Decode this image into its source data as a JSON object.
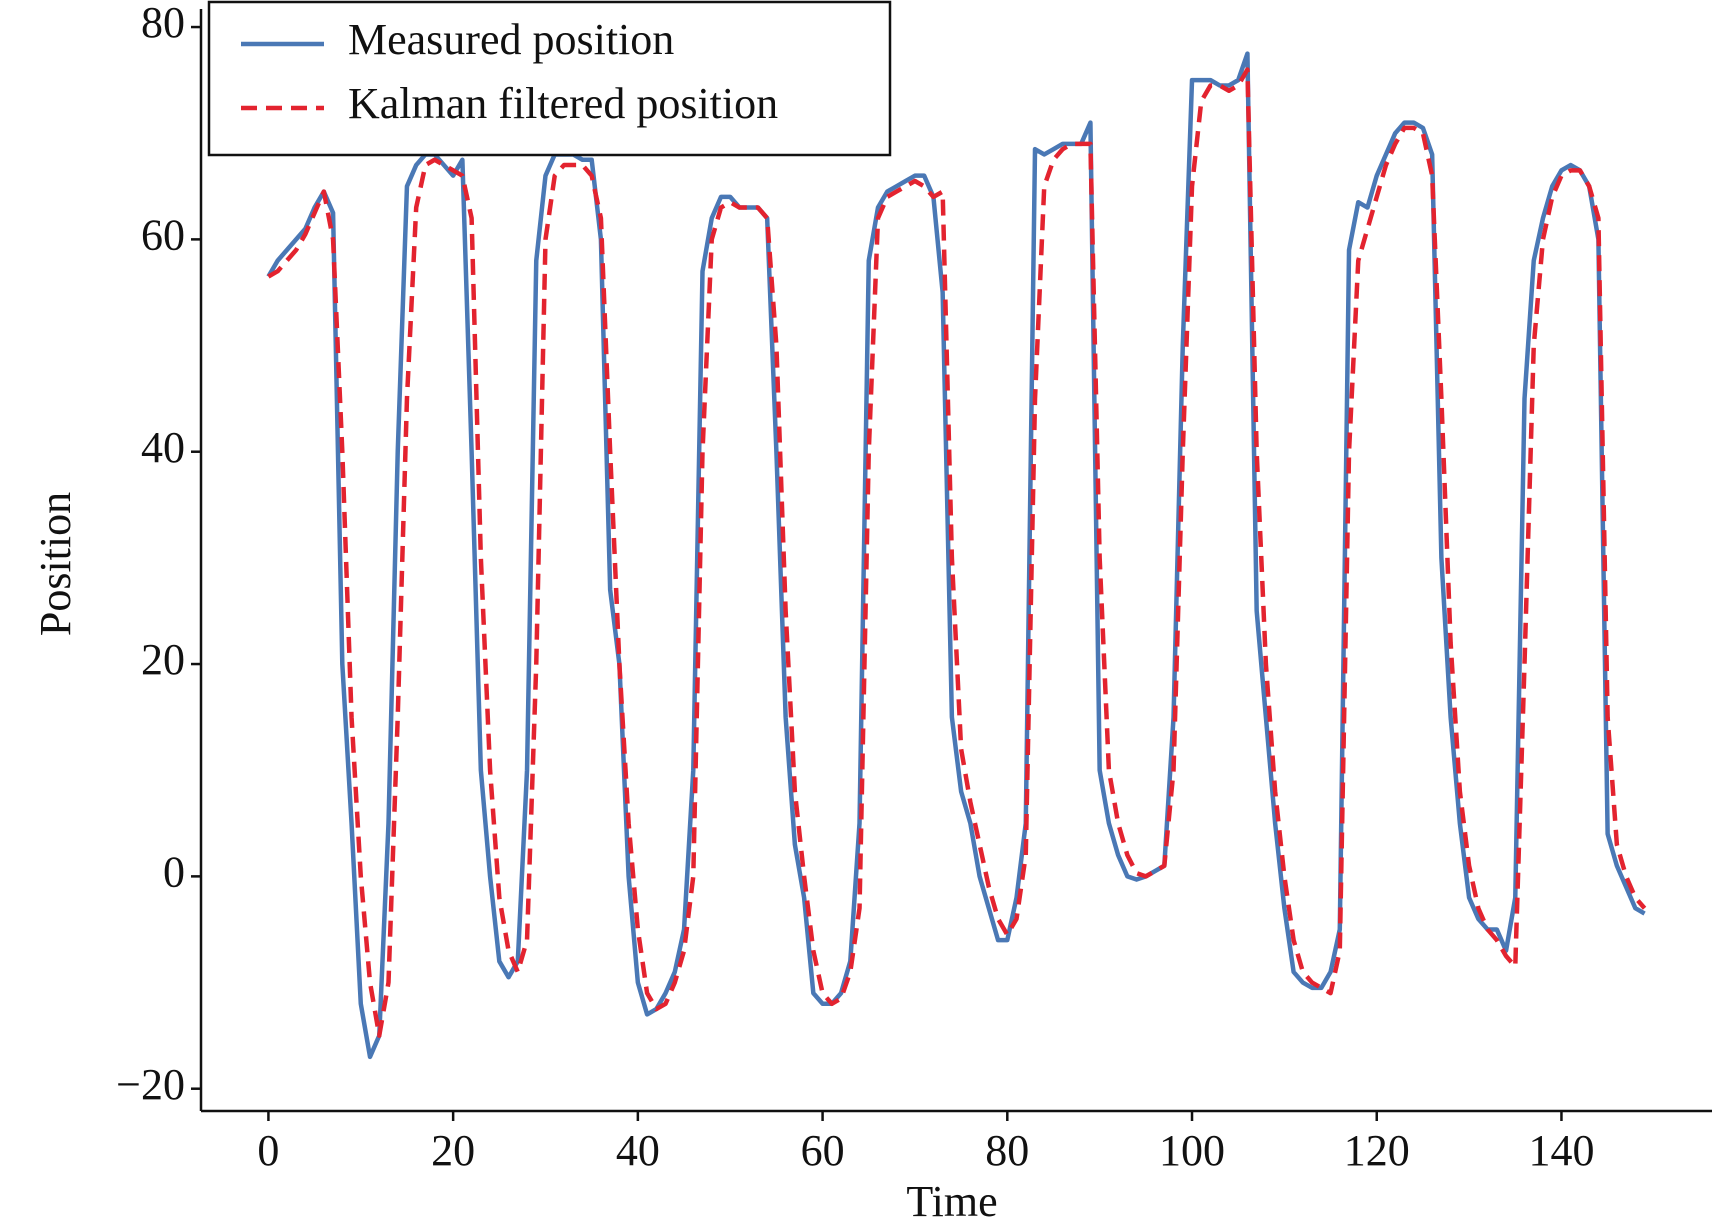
{
  "chart_data": {
    "type": "line",
    "x_label": "Time",
    "y_label": "Position",
    "x": [
      0,
      1,
      2,
      3,
      4,
      5,
      6,
      7,
      8,
      9,
      10,
      11,
      12,
      13,
      14,
      15,
      16,
      17,
      18,
      19,
      20,
      21,
      22,
      23,
      24,
      25,
      26,
      27,
      28,
      29,
      30,
      31,
      32,
      33,
      34,
      35,
      36,
      37,
      38,
      39,
      40,
      41,
      42,
      43,
      44,
      45,
      46,
      47,
      48,
      49,
      50,
      51,
      52,
      53,
      54,
      55,
      56,
      57,
      58,
      59,
      60,
      61,
      62,
      63,
      64,
      65,
      66,
      67,
      68,
      69,
      70,
      71,
      72,
      73,
      74,
      75,
      76,
      77,
      78,
      79,
      80,
      81,
      82,
      83,
      84,
      85,
      86,
      87,
      88,
      89,
      90,
      91,
      92,
      93,
      94,
      95,
      96,
      97,
      98,
      99,
      100,
      101,
      102,
      103,
      104,
      105,
      106,
      107,
      108,
      109,
      110,
      111,
      112,
      113,
      114,
      115,
      116,
      117,
      118,
      119,
      120,
      121,
      122,
      123,
      124,
      125,
      126,
      127,
      128,
      129,
      130,
      131,
      132,
      133,
      134,
      135,
      136,
      137,
      138,
      139,
      140,
      141,
      142,
      143,
      144,
      145,
      146,
      147,
      148,
      149
    ],
    "series": [
      {
        "name": "Measured position",
        "color": "#4a78b5",
        "dash": false,
        "values": [
          56.5,
          58,
          59,
          60,
          61,
          63,
          64.5,
          62.5,
          20,
          5,
          -12,
          -17,
          -15,
          5,
          40,
          65,
          67,
          68,
          68,
          67,
          66,
          67.5,
          40,
          10,
          0,
          -8,
          -9.5,
          -8,
          10,
          58,
          66,
          68,
          68,
          68,
          67.5,
          67.5,
          60,
          27,
          20,
          0,
          -10,
          -13,
          -12.5,
          -11,
          -9,
          -5,
          10,
          57,
          62,
          64,
          64,
          63,
          63,
          63,
          62,
          40,
          15,
          3,
          -2,
          -11,
          -12,
          -12,
          -11,
          -8,
          5,
          58,
          63,
          64.5,
          65,
          65.5,
          66,
          66,
          64,
          55,
          15,
          8,
          5,
          0,
          -3,
          -6,
          -6,
          -2,
          5,
          68.5,
          68,
          68.5,
          69,
          69,
          69,
          71,
          10,
          5,
          2,
          0,
          -0.3,
          0,
          0.5,
          1,
          15,
          50,
          75,
          75,
          75,
          74.5,
          74.5,
          75,
          77.5,
          25,
          15,
          5,
          -3,
          -9,
          -10,
          -10.5,
          -10.5,
          -9,
          -5,
          59,
          63.5,
          63,
          66,
          68,
          70,
          71,
          71,
          70.5,
          68,
          30,
          15,
          5,
          -2,
          -4,
          -5,
          -5,
          -7,
          -2,
          45,
          58,
          62,
          65,
          66.5,
          67,
          66.5,
          65,
          60,
          4,
          1,
          -1,
          -3,
          -3.5
        ]
      },
      {
        "name": "Kalman filtered position",
        "color": "#e3232f",
        "dash": true,
        "values": [
          56.5,
          57,
          58,
          59,
          60.5,
          62.5,
          64.5,
          60,
          40,
          15,
          0,
          -10,
          -15,
          -10,
          15,
          45,
          63,
          67,
          67.5,
          67,
          66.5,
          66,
          62,
          30,
          10,
          -2,
          -7,
          -9,
          -6,
          20,
          60,
          66,
          67,
          67,
          67,
          66,
          62,
          40,
          20,
          5,
          -5,
          -11,
          -12.5,
          -12,
          -10,
          -7,
          0,
          40,
          60,
          63,
          63.5,
          63,
          63,
          63,
          62,
          50,
          25,
          8,
          0,
          -7,
          -11,
          -12,
          -11.5,
          -9,
          -3,
          40,
          62,
          64,
          64.5,
          65,
          65.5,
          65,
          64,
          64.5,
          30,
          12,
          7,
          3,
          -1,
          -4,
          -5.5,
          -4,
          2,
          45,
          65,
          67.5,
          68.5,
          69,
          69,
          69,
          30,
          10,
          5,
          2,
          0.3,
          0,
          0.5,
          1,
          10,
          40,
          65,
          73,
          74.5,
          74.5,
          74,
          74.5,
          76,
          40,
          20,
          8,
          0,
          -6,
          -9,
          -10,
          -10.5,
          -11,
          -7,
          40,
          58,
          61,
          64,
          67,
          69,
          70.5,
          70.5,
          70,
          66,
          45,
          22,
          8,
          1,
          -3,
          -5,
          -6,
          -7.5,
          -8.5,
          20,
          50,
          60,
          64,
          66,
          66.5,
          66.5,
          65,
          62,
          15,
          3,
          0,
          -2,
          -3
        ]
      }
    ],
    "xlim": [
      -7.3,
      156.3
    ],
    "ylim": [
      -22.1,
      81.7
    ],
    "xticks": [
      0,
      20,
      40,
      60,
      80,
      100,
      120,
      140
    ],
    "yticks": [
      {
        "value": -20,
        "label": "−20"
      },
      0,
      20,
      40,
      60,
      80
    ],
    "grid": false,
    "legend": "upper left"
  }
}
